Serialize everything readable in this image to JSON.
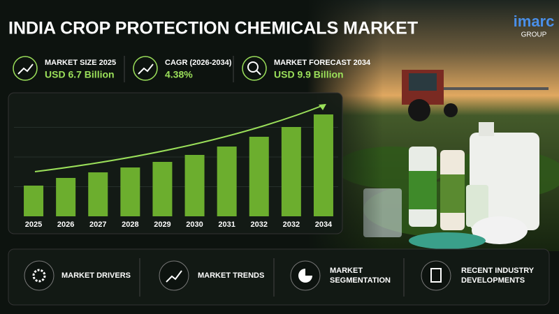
{
  "header": {
    "title": "INDIA CROP PROTECTION CHEMICALS MARKET"
  },
  "logo": {
    "name": "imarc",
    "sub": "GROUP"
  },
  "stats": [
    {
      "label": "MARKET SIZE 2025",
      "value": "USD 6.7 Billion"
    },
    {
      "label": "CAGR (2026-2034)",
      "value": "4.38%"
    },
    {
      "label": "MARKET FORECAST 2034",
      "value": "USD 9.9 Billion"
    }
  ],
  "chart_data": {
    "type": "bar",
    "categories": [
      "2025",
      "2026",
      "2027",
      "2028",
      "2029",
      "2030",
      "2031",
      "2032",
      "2032",
      "2034"
    ],
    "values": [
      44,
      55,
      63,
      70,
      78,
      88,
      100,
      114,
      128,
      146
    ],
    "ylim": [
      0,
      170
    ],
    "color": "#6cae2e"
  },
  "topics": [
    {
      "label": "MARKET DRIVERS"
    },
    {
      "label": "MARKET TRENDS"
    },
    {
      "label": "MARKET SEGMENTATION"
    },
    {
      "label": "RECENT INDUSTRY DEVELOPMENTS"
    }
  ]
}
